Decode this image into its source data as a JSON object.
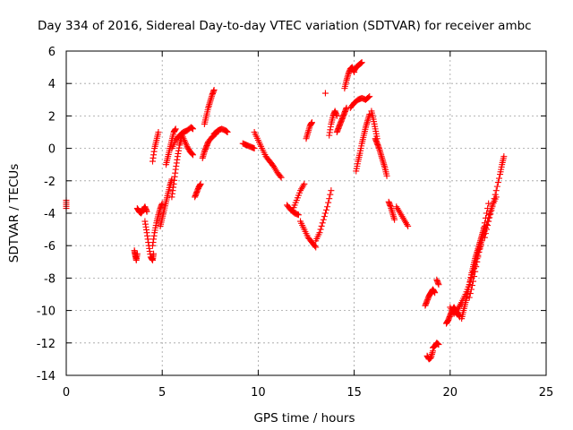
{
  "chart_data": {
    "type": "scatter",
    "title": "Day 334 of 2016, Sidereal Day-to-day VTEC variation (SDTVAR) for receiver ambc",
    "xlabel": "GPS time / hours",
    "ylabel": "SDTVAR / TECUs",
    "xlim": [
      0,
      25
    ],
    "ylim": [
      -14,
      6
    ],
    "xticks": [
      0,
      5,
      10,
      15,
      20,
      25
    ],
    "yticks": [
      -14,
      -12,
      -10,
      -8,
      -6,
      -4,
      -2,
      0,
      2,
      4,
      6
    ],
    "grid": true,
    "marker": "+",
    "color": "#ff0000",
    "series": [
      {
        "name": "s01",
        "x": [
          0.0,
          0.0
        ],
        "y": [
          -3.2,
          -3.7
        ]
      },
      {
        "name": "s02",
        "x": [
          3.55,
          3.6,
          3.65,
          3.7
        ],
        "y": [
          -6.3,
          -6.6,
          -6.9,
          -6.5
        ]
      },
      {
        "name": "s03",
        "x": [
          3.7,
          3.8,
          3.9,
          4.0,
          4.1,
          4.2
        ],
        "y": [
          -3.7,
          -3.9,
          -4.0,
          -3.8,
          -3.6,
          -3.9
        ]
      },
      {
        "name": "s04",
        "x": [
          4.1,
          4.2,
          4.3,
          4.4,
          4.5,
          4.55
        ],
        "y": [
          -4.5,
          -5.2,
          -6.0,
          -6.7,
          -6.9,
          -6.5
        ]
      },
      {
        "name": "s05",
        "x": [
          4.5,
          4.6,
          4.7,
          4.8,
          4.9,
          5.0
        ],
        "y": [
          -6.0,
          -5.2,
          -4.6,
          -4.1,
          -3.7,
          -3.4
        ]
      },
      {
        "name": "s06",
        "x": [
          4.5,
          4.6,
          4.7,
          4.8
        ],
        "y": [
          -0.8,
          0.0,
          0.5,
          1.0
        ]
      },
      {
        "name": "s07",
        "x": [
          4.9,
          5.0,
          5.1,
          5.2,
          5.3,
          5.4,
          5.5
        ],
        "y": [
          -4.8,
          -4.3,
          -3.8,
          -3.3,
          -2.8,
          -2.3,
          -1.9
        ]
      },
      {
        "name": "s08",
        "x": [
          5.2,
          5.3,
          5.4,
          5.5,
          5.6,
          5.7
        ],
        "y": [
          -1.0,
          -0.5,
          0.0,
          0.5,
          1.0,
          1.2
        ]
      },
      {
        "name": "s09",
        "x": [
          5.5,
          5.6,
          5.7,
          5.8,
          5.9,
          6.0
        ],
        "y": [
          -3.0,
          -2.2,
          -1.3,
          -0.5,
          0.2,
          0.6
        ]
      },
      {
        "name": "s10",
        "x": [
          5.5,
          5.7,
          5.9,
          6.1,
          6.3,
          6.5,
          6.6
        ],
        "y": [
          0.0,
          0.5,
          0.8,
          1.0,
          1.1,
          1.3,
          1.2
        ]
      },
      {
        "name": "s11",
        "x": [
          6.0,
          6.15,
          6.3,
          6.45,
          6.6
        ],
        "y": [
          0.9,
          0.5,
          0.1,
          -0.2,
          -0.4
        ]
      },
      {
        "name": "s12",
        "x": [
          6.7,
          6.8,
          6.9,
          7.0
        ],
        "y": [
          -3.0,
          -2.7,
          -2.4,
          -2.2
        ]
      },
      {
        "name": "s13",
        "x": [
          7.1,
          7.2,
          7.3,
          7.4,
          7.6,
          7.8
        ],
        "y": [
          -0.6,
          -0.2,
          0.1,
          0.4,
          0.7,
          0.9
        ]
      },
      {
        "name": "s14",
        "x": [
          7.2,
          7.3,
          7.4,
          7.5,
          7.6,
          7.7
        ],
        "y": [
          1.5,
          2.0,
          2.5,
          2.9,
          3.3,
          3.6
        ]
      },
      {
        "name": "s15",
        "x": [
          7.7,
          7.9,
          8.1,
          8.3,
          8.4
        ],
        "y": [
          0.9,
          1.1,
          1.2,
          1.1,
          1.0
        ]
      },
      {
        "name": "s16",
        "x": [
          9.2,
          9.4,
          9.6,
          9.8
        ],
        "y": [
          0.3,
          0.2,
          0.1,
          0.0
        ]
      },
      {
        "name": "s17",
        "x": [
          9.8,
          10.0,
          10.2,
          10.4,
          10.6,
          10.8,
          11.0,
          11.2
        ],
        "y": [
          1.0,
          0.5,
          0.0,
          -0.5,
          -0.8,
          -1.1,
          -1.5,
          -1.8
        ]
      },
      {
        "name": "s18",
        "x": [
          11.5,
          11.7,
          11.9,
          12.1
        ],
        "y": [
          -3.5,
          -3.8,
          -4.0,
          -4.1
        ]
      },
      {
        "name": "s19",
        "x": [
          11.8,
          12.0,
          12.2,
          12.4
        ],
        "y": [
          -3.8,
          -3.2,
          -2.6,
          -2.2
        ]
      },
      {
        "name": "s20",
        "x": [
          12.2,
          12.4,
          12.6,
          12.8,
          13.0
        ],
        "y": [
          -4.5,
          -5.0,
          -5.5,
          -5.8,
          -6.1
        ]
      },
      {
        "name": "s21",
        "x": [
          12.5,
          12.6,
          12.7,
          12.8
        ],
        "y": [
          0.6,
          1.0,
          1.4,
          1.6
        ]
      },
      {
        "name": "s22",
        "x": [
          13.0,
          13.2,
          13.4,
          13.6,
          13.8
        ],
        "y": [
          -5.7,
          -5.2,
          -4.4,
          -3.6,
          -2.6
        ]
      },
      {
        "name": "s23",
        "x": [
          13.5
        ],
        "y": [
          3.4
        ]
      },
      {
        "name": "s24",
        "x": [
          13.7,
          13.8,
          13.9,
          14.0,
          14.1
        ],
        "y": [
          0.8,
          1.5,
          2.0,
          2.3,
          2.0
        ]
      },
      {
        "name": "s25",
        "x": [
          14.1,
          14.2,
          14.3,
          14.4,
          14.5,
          14.6
        ],
        "y": [
          1.0,
          1.3,
          1.6,
          1.9,
          2.2,
          2.5
        ]
      },
      {
        "name": "s26",
        "x": [
          14.5,
          14.6,
          14.7,
          14.8,
          14.9,
          15.0
        ],
        "y": [
          3.7,
          4.2,
          4.6,
          4.9,
          5.0,
          4.7
        ]
      },
      {
        "name": "s27",
        "x": [
          15.0,
          15.1,
          15.2,
          15.3,
          15.4
        ],
        "y": [
          4.8,
          5.0,
          5.1,
          5.2,
          5.3
        ]
      },
      {
        "name": "s28",
        "x": [
          14.8,
          15.0,
          15.2,
          15.4,
          15.6,
          15.8
        ],
        "y": [
          2.5,
          2.8,
          3.0,
          3.1,
          3.0,
          3.2
        ]
      },
      {
        "name": "s29",
        "x": [
          15.1,
          15.2,
          15.3,
          15.4,
          15.5,
          15.6,
          15.7,
          15.8
        ],
        "y": [
          -1.4,
          -0.8,
          -0.3,
          0.3,
          0.8,
          1.3,
          1.7,
          2.1
        ]
      },
      {
        "name": "s30",
        "x": [
          15.9,
          16.0,
          16.1,
          16.2
        ],
        "y": [
          2.3,
          1.8,
          1.2,
          0.6
        ]
      },
      {
        "name": "s31",
        "x": [
          16.1,
          16.2,
          16.3,
          16.4,
          16.5,
          16.6,
          16.7
        ],
        "y": [
          0.6,
          0.3,
          0.0,
          -0.4,
          -0.8,
          -1.2,
          -1.7
        ]
      },
      {
        "name": "s32",
        "x": [
          16.8,
          16.9,
          17.0,
          17.1
        ],
        "y": [
          -3.3,
          -3.6,
          -4.0,
          -4.4
        ]
      },
      {
        "name": "s33",
        "x": [
          17.2,
          17.4,
          17.6,
          17.8
        ],
        "y": [
          -3.6,
          -4.0,
          -4.4,
          -4.8
        ]
      },
      {
        "name": "s34",
        "x": [
          18.7,
          18.8,
          18.9,
          19.0,
          19.1,
          19.2
        ],
        "y": [
          -9.7,
          -9.4,
          -9.1,
          -8.9,
          -8.7,
          -8.9
        ]
      },
      {
        "name": "s35",
        "x": [
          18.8,
          18.9,
          19.0,
          19.1
        ],
        "y": [
          -12.8,
          -13.0,
          -12.9,
          -12.5
        ]
      },
      {
        "name": "s36",
        "x": [
          19.1,
          19.2,
          19.3,
          19.4
        ],
        "y": [
          -12.3,
          -12.2,
          -12.0,
          -12.1
        ]
      },
      {
        "name": "s37",
        "x": [
          19.3,
          19.4
        ],
        "y": [
          -8.1,
          -8.4
        ]
      },
      {
        "name": "s38",
        "x": [
          19.8,
          19.9,
          20.0,
          20.1,
          20.2,
          20.3,
          20.4,
          20.5
        ],
        "y": [
          -10.8,
          -10.6,
          -10.3,
          -10.0,
          -9.8,
          -10.0,
          -10.2,
          -10.4
        ]
      },
      {
        "name": "s39",
        "x": [
          20.0,
          20.2,
          20.4,
          20.6,
          20.8,
          21.0,
          21.2,
          21.4,
          21.6
        ],
        "y": [
          -9.8,
          -10.2,
          -9.9,
          -9.5,
          -9.0,
          -8.4,
          -7.6,
          -6.8,
          -6.0
        ]
      },
      {
        "name": "s40",
        "x": [
          20.6,
          20.7,
          20.8,
          20.9,
          21.0,
          21.1,
          21.2,
          21.3,
          21.4,
          21.5,
          21.6,
          21.7,
          21.8
        ],
        "y": [
          -10.5,
          -10.0,
          -9.5,
          -9.0,
          -8.4,
          -7.8,
          -7.3,
          -6.8,
          -6.4,
          -6.0,
          -5.6,
          -5.2,
          -4.8
        ]
      },
      {
        "name": "s41",
        "x": [
          21.0,
          21.2,
          21.4,
          21.6,
          21.8,
          22.0
        ],
        "y": [
          -9.2,
          -8.2,
          -7.0,
          -5.8,
          -4.6,
          -3.4
        ]
      },
      {
        "name": "s42",
        "x": [
          21.4,
          21.6,
          21.8,
          22.0,
          22.2,
          22.4
        ],
        "y": [
          -6.6,
          -5.9,
          -5.1,
          -4.3,
          -3.5,
          -3.0
        ]
      },
      {
        "name": "s43",
        "x": [
          21.8,
          22.0,
          22.2,
          22.4,
          22.6,
          22.7,
          22.8
        ],
        "y": [
          -5.5,
          -4.5,
          -3.6,
          -2.6,
          -1.6,
          -1.0,
          -0.5
        ]
      }
    ]
  }
}
